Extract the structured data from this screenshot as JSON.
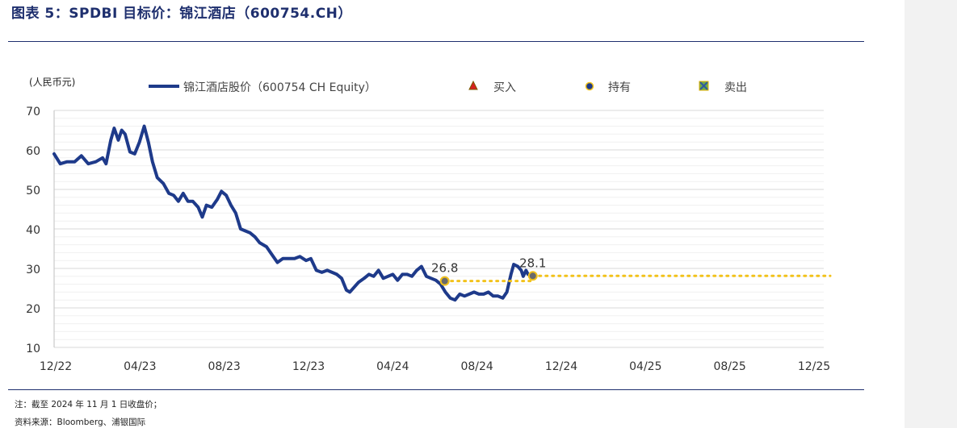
{
  "header": {
    "title": "图表 5：SPDBI 目标价：锦江酒店（600754.CH）"
  },
  "footer": {
    "note": "注：截至 2024 年 11 月 1 日收盘价；",
    "source": "资料来源：Bloomberg、浦银国际"
  },
  "colors": {
    "price_line": "#1e3a8a",
    "target_line": "#f2c21b",
    "buy_marker": "#d62020",
    "hold_marker": "#1e3a8a",
    "sell_marker": "#70ad47",
    "title": "#1e2f6e"
  },
  "chart_data": {
    "type": "line",
    "ylabel": "(人民币元)",
    "ylim": [
      10,
      70
    ],
    "yticks": [
      "70",
      "60",
      "50",
      "40",
      "30",
      "20",
      "10"
    ],
    "xticks": [
      "12/22",
      "04/23",
      "08/23",
      "12/23",
      "04/24",
      "08/24",
      "12/24",
      "04/25",
      "08/25",
      "12/25"
    ],
    "grid": true,
    "legend": {
      "position": "top",
      "entries": [
        {
          "label": "锦江酒店股价（600754 CH Equity）",
          "marker": "line"
        },
        {
          "label": "买入",
          "marker": "triangle"
        },
        {
          "label": "持有",
          "marker": "circle"
        },
        {
          "label": "卖出",
          "marker": "x-square"
        }
      ]
    },
    "series": [
      {
        "name": "锦江酒店股价（600754 CH Equity）",
        "points": [
          [
            "2022-12-01",
            59.0
          ],
          [
            "2022-12-10",
            56.5
          ],
          [
            "2022-12-20",
            57.0
          ],
          [
            "2022-12-31",
            57.0
          ],
          [
            "2023-01-10",
            58.5
          ],
          [
            "2023-01-20",
            56.5
          ],
          [
            "2023-01-31",
            57.0
          ],
          [
            "2023-02-10",
            58.0
          ],
          [
            "2023-02-15",
            56.5
          ],
          [
            "2023-02-22",
            62.5
          ],
          [
            "2023-02-27",
            65.5
          ],
          [
            "2023-03-05",
            62.5
          ],
          [
            "2023-03-10",
            65.0
          ],
          [
            "2023-03-15",
            64.0
          ],
          [
            "2023-03-22",
            59.5
          ],
          [
            "2023-03-29",
            59.0
          ],
          [
            "2023-04-05",
            62.0
          ],
          [
            "2023-04-12",
            66.0
          ],
          [
            "2023-04-18",
            62.0
          ],
          [
            "2023-04-24",
            57.0
          ],
          [
            "2023-05-01",
            53.0
          ],
          [
            "2023-05-10",
            51.5
          ],
          [
            "2023-05-18",
            49.0
          ],
          [
            "2023-05-25",
            48.5
          ],
          [
            "2023-06-01",
            47.0
          ],
          [
            "2023-06-08",
            49.0
          ],
          [
            "2023-06-15",
            47.0
          ],
          [
            "2023-06-22",
            47.0
          ],
          [
            "2023-06-30",
            45.5
          ],
          [
            "2023-07-06",
            43.0
          ],
          [
            "2023-07-12",
            46.0
          ],
          [
            "2023-07-20",
            45.5
          ],
          [
            "2023-07-28",
            47.5
          ],
          [
            "2023-08-03",
            49.5
          ],
          [
            "2023-08-10",
            48.5
          ],
          [
            "2023-08-17",
            46.0
          ],
          [
            "2023-08-24",
            44.0
          ],
          [
            "2023-08-31",
            40.0
          ],
          [
            "2023-09-07",
            39.5
          ],
          [
            "2023-09-14",
            39.0
          ],
          [
            "2023-09-21",
            38.0
          ],
          [
            "2023-09-28",
            36.5
          ],
          [
            "2023-10-08",
            35.5
          ],
          [
            "2023-10-16",
            33.5
          ],
          [
            "2023-10-24",
            31.5
          ],
          [
            "2023-11-01",
            32.5
          ],
          [
            "2023-11-10",
            32.5
          ],
          [
            "2023-11-18",
            32.5
          ],
          [
            "2023-11-26",
            33.0
          ],
          [
            "2023-12-05",
            32.0
          ],
          [
            "2023-12-12",
            32.5
          ],
          [
            "2023-12-20",
            29.5
          ],
          [
            "2023-12-28",
            29.0
          ],
          [
            "2024-01-05",
            29.5
          ],
          [
            "2024-01-12",
            29.0
          ],
          [
            "2024-01-19",
            28.5
          ],
          [
            "2024-01-26",
            27.5
          ],
          [
            "2024-02-02",
            24.5
          ],
          [
            "2024-02-07",
            24.0
          ],
          [
            "2024-02-20",
            26.5
          ],
          [
            "2024-02-28",
            27.5
          ],
          [
            "2024-03-06",
            28.5
          ],
          [
            "2024-03-13",
            28.0
          ],
          [
            "2024-03-20",
            29.5
          ],
          [
            "2024-03-27",
            27.5
          ],
          [
            "2024-04-03",
            28.0
          ],
          [
            "2024-04-10",
            28.5
          ],
          [
            "2024-04-17",
            27.0
          ],
          [
            "2024-04-24",
            28.5
          ],
          [
            "2024-05-01",
            28.5
          ],
          [
            "2024-05-08",
            28.0
          ],
          [
            "2024-05-15",
            29.5
          ],
          [
            "2024-05-22",
            30.5
          ],
          [
            "2024-05-29",
            28.0
          ],
          [
            "2024-06-05",
            27.5
          ],
          [
            "2024-06-12",
            27.0
          ],
          [
            "2024-06-19",
            26.0
          ],
          [
            "2024-06-26",
            24.0
          ],
          [
            "2024-07-03",
            22.5
          ],
          [
            "2024-07-10",
            22.0
          ],
          [
            "2024-07-17",
            23.5
          ],
          [
            "2024-07-24",
            23.0
          ],
          [
            "2024-07-31",
            23.5
          ],
          [
            "2024-08-07",
            24.0
          ],
          [
            "2024-08-14",
            23.5
          ],
          [
            "2024-08-21",
            23.5
          ],
          [
            "2024-08-28",
            24.0
          ],
          [
            "2024-09-04",
            23.0
          ],
          [
            "2024-09-11",
            23.0
          ],
          [
            "2024-09-18",
            22.5
          ],
          [
            "2024-09-24",
            24.0
          ],
          [
            "2024-09-30",
            28.5
          ],
          [
            "2024-10-04",
            31.0
          ],
          [
            "2024-10-10",
            30.5
          ],
          [
            "2024-10-15",
            29.5
          ],
          [
            "2024-10-18",
            28.0
          ],
          [
            "2024-10-22",
            29.5
          ],
          [
            "2024-10-25",
            28.5
          ],
          [
            "2024-11-01",
            28.3
          ]
        ]
      }
    ],
    "ratings": [
      {
        "rating": "持有",
        "date": "2024-06-25",
        "target_price": 26.8,
        "label": "26.8"
      },
      {
        "rating": "持有",
        "date": "2024-11-01",
        "target_price": 28.1,
        "label": "28.1"
      }
    ],
    "target_price_line": {
      "from": "2024-06-25",
      "to": "2024-12-01",
      "value": 26.8,
      "then": 28.1,
      "extends_to": "2026-01-01"
    }
  }
}
